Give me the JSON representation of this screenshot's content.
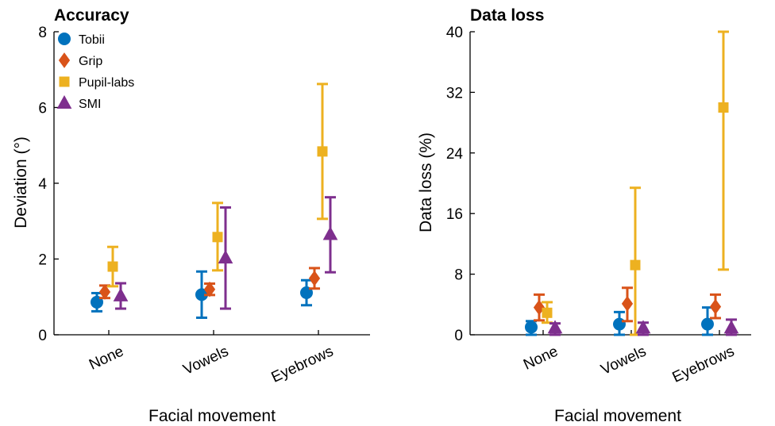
{
  "chart_data": [
    {
      "type": "scatter",
      "title": "Accuracy",
      "xlabel": "Facial movement",
      "ylabel": "Deviation (°)",
      "categories": [
        "None",
        "Vowels",
        "Eyebrows"
      ],
      "ylim": [
        0,
        8
      ],
      "yticks": [
        "0",
        "2",
        "4",
        "6",
        "8"
      ],
      "grid": false,
      "legend_position": "top-left",
      "series": [
        {
          "name": "Tobii",
          "color": "#0072BD",
          "marker": "circle",
          "values": [
            0.86,
            1.06,
            1.11
          ],
          "error_low": [
            0.62,
            0.45,
            0.78
          ],
          "error_high": [
            1.1,
            1.67,
            1.44
          ]
        },
        {
          "name": "Grip",
          "color": "#D95319",
          "marker": "diamond",
          "values": [
            1.13,
            1.2,
            1.49
          ],
          "error_low": [
            0.97,
            1.05,
            1.22
          ],
          "error_high": [
            1.3,
            1.35,
            1.76
          ]
        },
        {
          "name": "Pupil-labs",
          "color": "#EDB120",
          "marker": "square",
          "values": [
            1.8,
            2.58,
            4.84
          ],
          "error_low": [
            1.28,
            1.7,
            3.06
          ],
          "error_high": [
            2.32,
            3.48,
            6.62
          ]
        },
        {
          "name": "SMI",
          "color": "#7E2F8E",
          "marker": "triangle",
          "values": [
            1.03,
            2.03,
            2.65
          ],
          "error_low": [
            0.69,
            0.69,
            1.65
          ],
          "error_high": [
            1.36,
            3.36,
            3.63
          ]
        }
      ]
    },
    {
      "type": "scatter",
      "title": "Data loss",
      "xlabel": "Facial movement",
      "ylabel": "Data loss (%)",
      "categories": [
        "None",
        "Vowels",
        "Eyebrows"
      ],
      "ylim": [
        0,
        40
      ],
      "yticks": [
        "0",
        "8",
        "16",
        "24",
        "32",
        "40"
      ],
      "grid": false,
      "series": [
        {
          "name": "Tobii",
          "color": "#0072BD",
          "marker": "circle",
          "values": [
            1.0,
            1.4,
            1.4
          ],
          "error_low": [
            0,
            0,
            0
          ],
          "error_high": [
            1.8,
            3.0,
            3.6
          ]
        },
        {
          "name": "Grip",
          "color": "#D95319",
          "marker": "diamond",
          "values": [
            3.6,
            4.1,
            3.7
          ],
          "error_low": [
            1.9,
            1.8,
            2.2
          ],
          "error_high": [
            5.3,
            6.2,
            5.3
          ]
        },
        {
          "name": "Pupil-labs",
          "color": "#EDB120",
          "marker": "square",
          "values": [
            2.9,
            9.2,
            30.0
          ],
          "error_low": [
            1.6,
            0,
            8.6
          ],
          "error_high": [
            4.3,
            19.4,
            40.0
          ]
        },
        {
          "name": "SMI",
          "color": "#7E2F8E",
          "marker": "triangle",
          "values": [
            0.9,
            0.9,
            0.9
          ],
          "error_low": [
            0,
            0,
            0
          ],
          "error_high": [
            1.5,
            1.6,
            2.0
          ]
        }
      ]
    }
  ]
}
